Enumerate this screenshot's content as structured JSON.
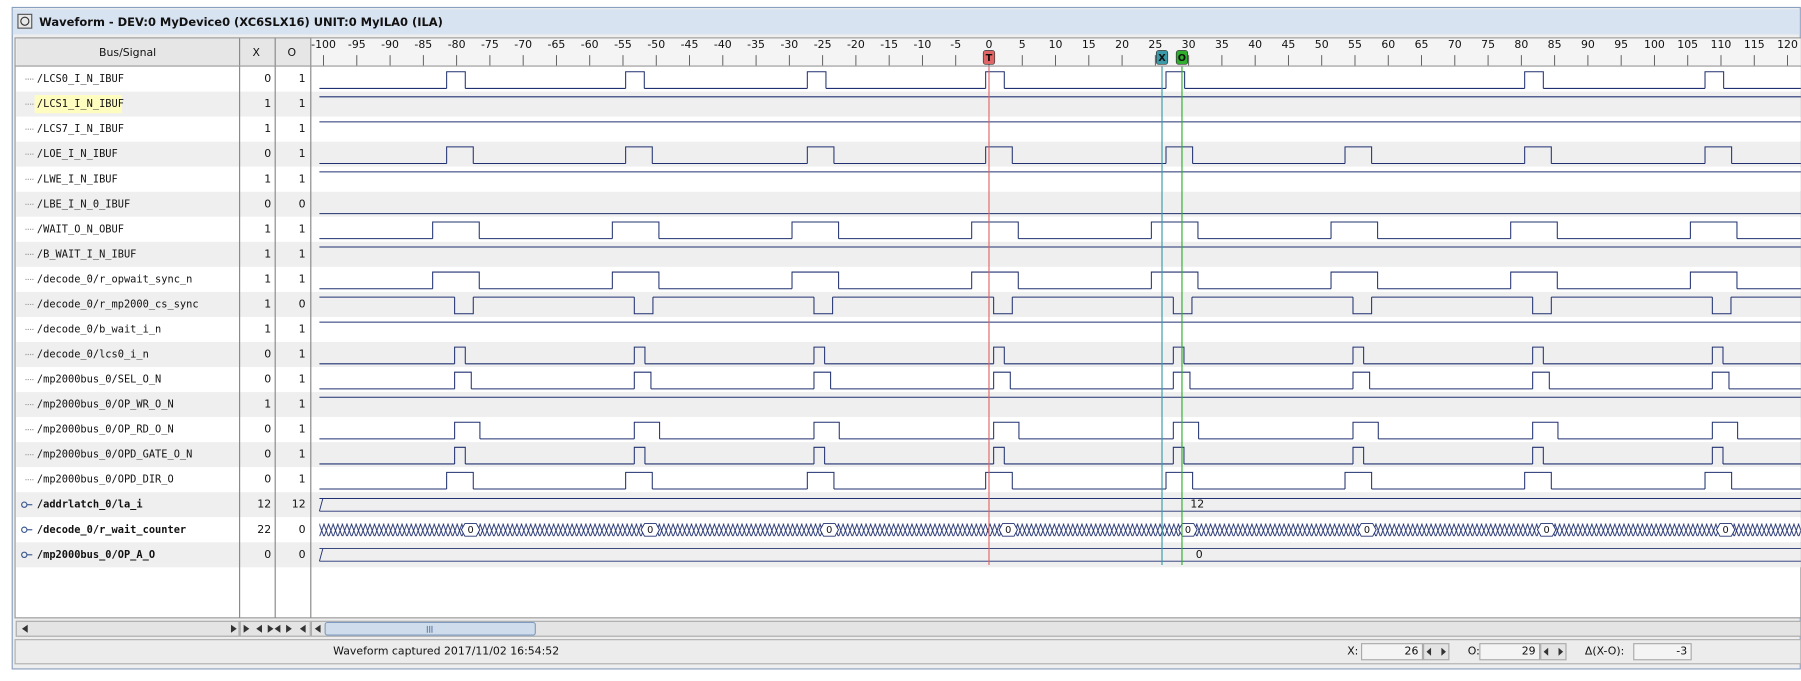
{
  "window": {
    "title": "Waveform - DEV:0 MyDevice0 (XC6SLX16) UNIT:0 MyILA0 (ILA)"
  },
  "header": {
    "signal": "Bus/Signal",
    "x": "X",
    "o": "O"
  },
  "time_axis": {
    "xlim": [
      -102,
      122
    ],
    "xticks": [
      -100,
      -95,
      -90,
      -85,
      -80,
      -75,
      -70,
      -65,
      -60,
      -55,
      -50,
      -45,
      -40,
      -35,
      -30,
      -25,
      -20,
      -15,
      -10,
      -5,
      0,
      5,
      10,
      15,
      20,
      25,
      30,
      35,
      40,
      45,
      50,
      55,
      60,
      65,
      70,
      75,
      80,
      85,
      90,
      95,
      100,
      105,
      110,
      115,
      120
    ]
  },
  "cursors": [
    {
      "label": "T",
      "time": 0,
      "color": "#e06666"
    },
    {
      "label": "X",
      "time": 26,
      "color": "#3a9aa8"
    },
    {
      "label": "O",
      "time": 29,
      "color": "#2fae2f"
    }
  ],
  "signals": [
    {
      "name": "/LCS0_I_N_IBUF",
      "x": 0,
      "o": 1,
      "base": 0,
      "width": 2.8,
      "starts": [
        -81.5,
        -54.6,
        -27.3,
        -0.5,
        26.6,
        80.5,
        107.6
      ]
    },
    {
      "name": "/LCS1_I_N_IBUF",
      "x": 1,
      "o": 1,
      "base": 1,
      "highlight": true
    },
    {
      "name": "/LCS7_I_N_IBUF",
      "x": 1,
      "o": 1,
      "base": 1
    },
    {
      "name": "/LOE_I_N_IBUF",
      "x": 0,
      "o": 1,
      "base": 0,
      "width": 4,
      "starts": [
        -81.5,
        -54.6,
        -27.3,
        -0.5,
        26.6,
        53.5,
        80.5,
        107.6
      ]
    },
    {
      "name": "/LWE_I_N_IBUF",
      "x": 1,
      "o": 1,
      "base": 1
    },
    {
      "name": "/LBE_I_N_0_IBUF",
      "x": 0,
      "o": 0,
      "base": 0
    },
    {
      "name": "/WAIT_O_N_OBUF",
      "x": 1,
      "o": 1,
      "base": 0,
      "width": 7,
      "starts": [
        -83.6,
        -56.6,
        -29.6,
        -2.6,
        24.4,
        51.4,
        78.4,
        105.4
      ]
    },
    {
      "name": "/B_WAIT_I_N_IBUF",
      "x": 1,
      "o": 1,
      "base": 1
    },
    {
      "name": "/decode_0/r_opwait_sync_n",
      "x": 1,
      "o": 1,
      "base": 0,
      "width": 7,
      "starts": [
        -83.6,
        -56.6,
        -29.6,
        -2.6,
        24.4,
        51.4,
        78.4,
        105.4
      ]
    },
    {
      "name": "/decode_0/r_mp2000_cs_sync",
      "x": 1,
      "o": 0,
      "base": 1,
      "width": 2.8,
      "starts": [
        -80.3,
        -53.3,
        -26.3,
        0.7,
        27.7,
        54.7,
        81.7,
        108.7
      ]
    },
    {
      "name": "/decode_0/b_wait_i_n",
      "x": 1,
      "o": 1,
      "base": 1
    },
    {
      "name": "/decode_0/lcs0_i_n",
      "x": 0,
      "o": 1,
      "base": 0,
      "width": 1.6,
      "starts": [
        -80.3,
        -53.3,
        -26.3,
        0.7,
        27.7,
        54.7,
        81.7,
        108.7
      ]
    },
    {
      "name": "/mp2000bus_0/SEL_O_N",
      "x": 0,
      "o": 1,
      "base": 0,
      "width": 2.5,
      "starts": [
        -80.3,
        -53.3,
        -26.3,
        0.7,
        27.7,
        54.7,
        81.7,
        108.7
      ]
    },
    {
      "name": "/mp2000bus_0/OP_WR_O_N",
      "x": 1,
      "o": 1,
      "base": 1
    },
    {
      "name": "/mp2000bus_0/OP_RD_O_N",
      "x": 0,
      "o": 1,
      "base": 0,
      "width": 3.8,
      "starts": [
        -80.3,
        -53.3,
        -26.3,
        0.7,
        27.7,
        54.7,
        81.7,
        108.7
      ]
    },
    {
      "name": "/mp2000bus_0/OPD_GATE_O_N",
      "x": 0,
      "o": 1,
      "base": 0,
      "width": 1.6,
      "starts": [
        -80.3,
        -53.3,
        -26.3,
        0.7,
        27.7,
        54.7,
        81.7,
        108.7
      ]
    },
    {
      "name": "/mp2000bus_0/OPD_DIR_O",
      "x": 0,
      "o": 1,
      "base": 0,
      "width": 4,
      "starts": [
        -81.5,
        -54.6,
        -27.3,
        -0.5,
        26.6,
        53.5,
        80.5,
        107.6
      ]
    },
    {
      "name": "/addrlatch_0/la_i",
      "x": 12,
      "o": 12,
      "bus": true,
      "labels": [
        {
          "text": "12",
          "at": 31.3
        }
      ]
    },
    {
      "name": "/decode_0/r_wait_counter",
      "x": 22,
      "o": 0,
      "bus": true,
      "hatched": true,
      "labels": [
        {
          "text": "0",
          "at": -77.9
        },
        {
          "text": "0",
          "at": -50.9
        },
        {
          "text": "0",
          "at": -24
        },
        {
          "text": "0",
          "at": 2.9
        },
        {
          "text": "0",
          "at": 29.9
        },
        {
          "text": "0",
          "at": 56.8
        },
        {
          "text": "0",
          "at": 83.8
        },
        {
          "text": "0",
          "at": 110.7
        }
      ]
    },
    {
      "name": "/mp2000bus_0/OP_A_O",
      "x": 0,
      "o": 0,
      "bus": true,
      "labels": [
        {
          "text": "0",
          "at": 31.6
        }
      ]
    }
  ],
  "status": {
    "capture": "Waveform captured 2017/11/02 16:54:52",
    "x_label": "X:",
    "x_value": 26,
    "o_label": "O:",
    "o_value": 29,
    "delta_label": "Δ(X-O):",
    "delta_value": -3
  }
}
